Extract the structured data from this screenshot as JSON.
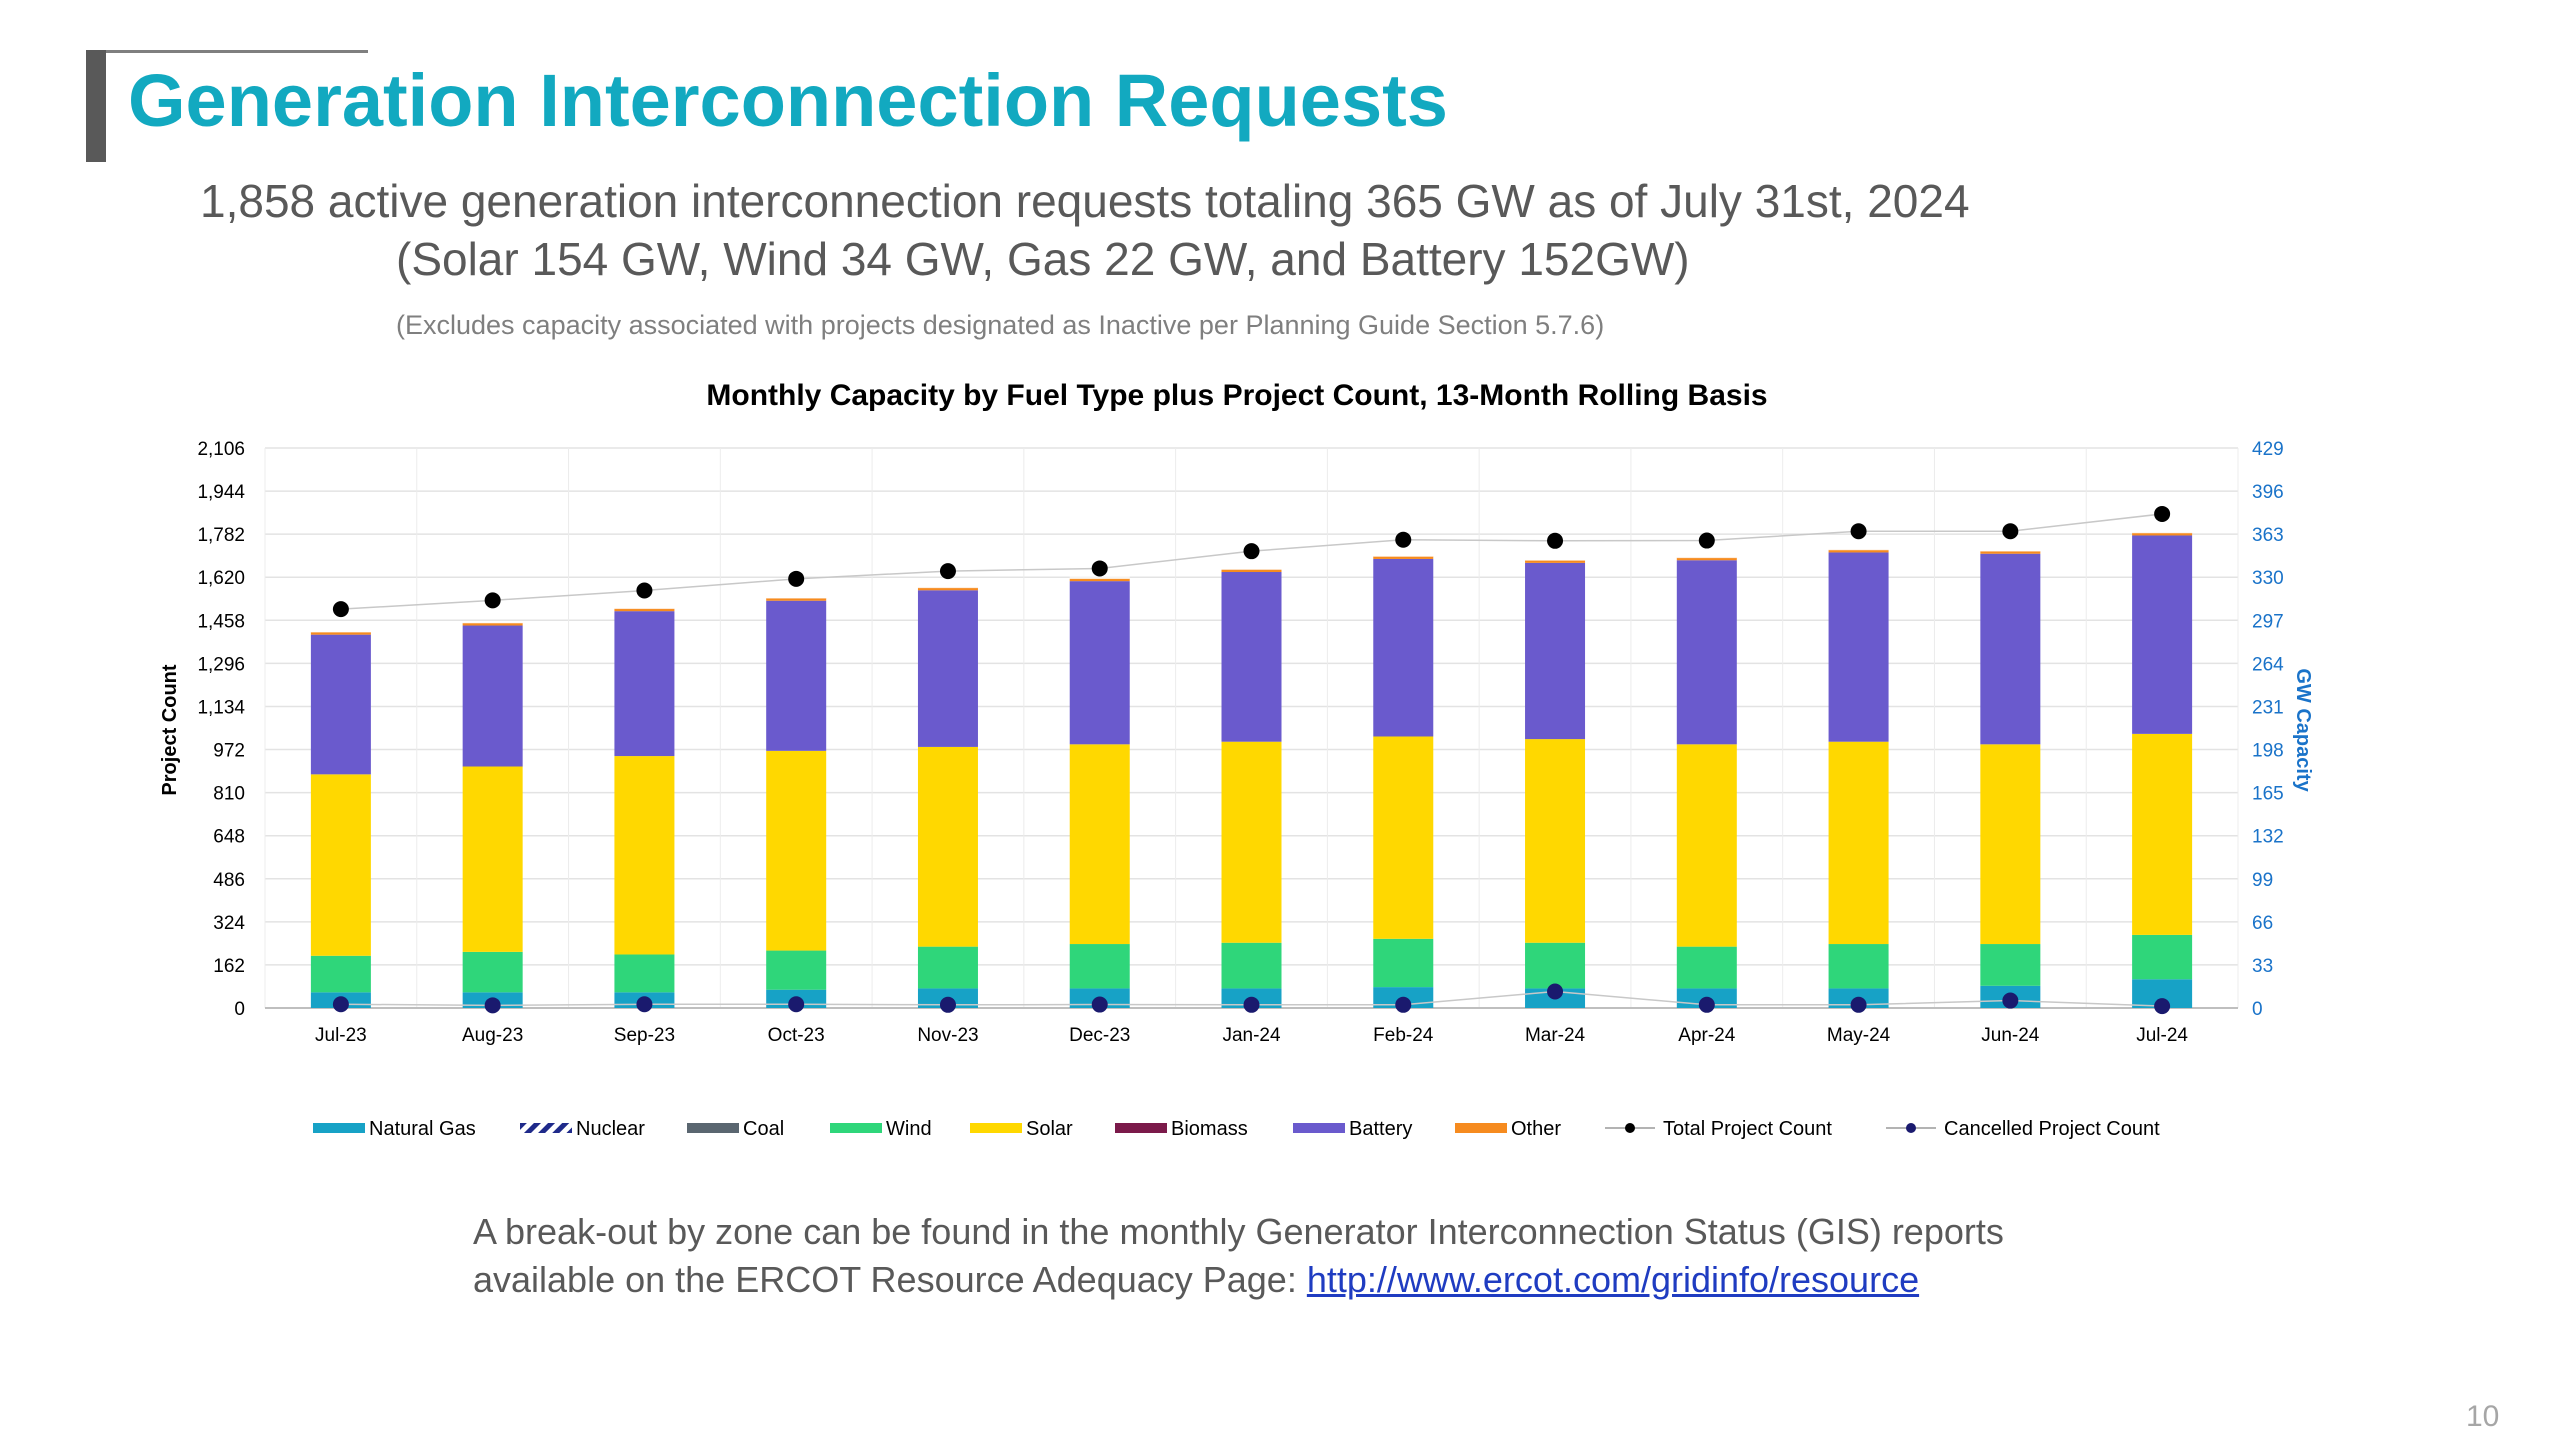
{
  "slide": {
    "title": "Generation Interconnection Requests",
    "subtitle_line1": "1,858 active generation interconnection requests totaling 365 GW as of July 31st, 2024",
    "subtitle_line2": "(Solar 154 GW, Wind 34 GW, Gas 22 GW, and Battery 152GW)",
    "note": "(Excludes capacity associated with projects designated as Inactive per Planning Guide Section 5.7.6)",
    "footer_line1": "A break-out by zone can be found in the monthly Generator Interconnection Status (GIS) reports",
    "footer_line2_prefix": "available on the ERCOT Resource Adequacy Page: ",
    "footer_link": "http://www.ercot.com/gridinfo/resource",
    "page_number": "10"
  },
  "chart_data": {
    "type": "bar",
    "stacked": true,
    "title": "Monthly Capacity by Fuel Type plus Project Count, 13-Month Rolling Basis",
    "ylabel_left": "Project Count",
    "ylabel_right": "GW Capacity",
    "left_ticks": [
      "0",
      "162",
      "324",
      "486",
      "648",
      "810",
      "972",
      "1,134",
      "1,296",
      "1,458",
      "1,620",
      "1,782",
      "1,944",
      "2,106"
    ],
    "right_ticks": [
      "0",
      "33",
      "66",
      "99",
      "132",
      "165",
      "198",
      "231",
      "264",
      "297",
      "330",
      "363",
      "396",
      "429"
    ],
    "ylim_left": [
      0,
      2106
    ],
    "ylim_right": [
      0,
      429
    ],
    "grid": true,
    "legend_position": "bottom",
    "categories": [
      "Jul-23",
      "Aug-23",
      "Sep-23",
      "Oct-23",
      "Nov-23",
      "Dec-23",
      "Jan-24",
      "Feb-24",
      "Mar-24",
      "Apr-24",
      "May-24",
      "Jun-24",
      "Jul-24"
    ],
    "series": [
      {
        "name": "Natural Gas",
        "color": "#17a2c6",
        "axis": "right",
        "values": [
          12,
          12,
          12,
          14,
          15,
          15,
          15,
          16,
          15,
          15,
          15,
          17,
          22
        ]
      },
      {
        "name": "Nuclear",
        "color": "#1f2a8a",
        "axis": "right",
        "pattern": "hatched",
        "values": [
          0,
          0,
          0,
          0,
          0,
          0,
          0,
          0,
          0,
          0,
          0,
          0,
          0
        ]
      },
      {
        "name": "Coal",
        "color": "#5a6670",
        "axis": "right",
        "values": [
          0,
          0,
          0,
          0,
          0,
          0,
          0,
          0,
          0,
          0,
          0,
          0,
          0
        ]
      },
      {
        "name": "Wind",
        "color": "#2fd67a",
        "axis": "right",
        "values": [
          28,
          31,
          29,
          30,
          32,
          34,
          35,
          37,
          35,
          32,
          34,
          32,
          34
        ]
      },
      {
        "name": "Solar",
        "color": "#ffd800",
        "axis": "right",
        "values": [
          139,
          142,
          152,
          153,
          153,
          153,
          154,
          155,
          156,
          155,
          155,
          153,
          154
        ]
      },
      {
        "name": "Biomass",
        "color": "#7b1a4a",
        "axis": "right",
        "values": [
          0,
          0,
          0,
          0,
          0,
          0,
          0,
          0,
          0,
          0,
          0,
          0,
          0
        ]
      },
      {
        "name": "Battery",
        "color": "#6a5acd",
        "axis": "right",
        "values": [
          107,
          108,
          111,
          115,
          120,
          125,
          130,
          136,
          135,
          141,
          145,
          146,
          152
        ]
      },
      {
        "name": "Other",
        "color": "#f68b1f",
        "axis": "right",
        "values": [
          2,
          2,
          2,
          2,
          2,
          2,
          2,
          2,
          2,
          2,
          2,
          2,
          2
        ]
      },
      {
        "name": "Total Project Count",
        "color": "#000000",
        "axis": "left",
        "type": "line",
        "values": [
          1500,
          1533,
          1570,
          1614,
          1643,
          1653,
          1718,
          1761,
          1757,
          1758,
          1793,
          1793,
          1858
        ]
      },
      {
        "name": "Cancelled Project Count",
        "color": "#1a1a6e",
        "axis": "left",
        "type": "line",
        "values": [
          14,
          10,
          14,
          14,
          12,
          13,
          12,
          12,
          62,
          12,
          12,
          28,
          7
        ]
      }
    ]
  }
}
